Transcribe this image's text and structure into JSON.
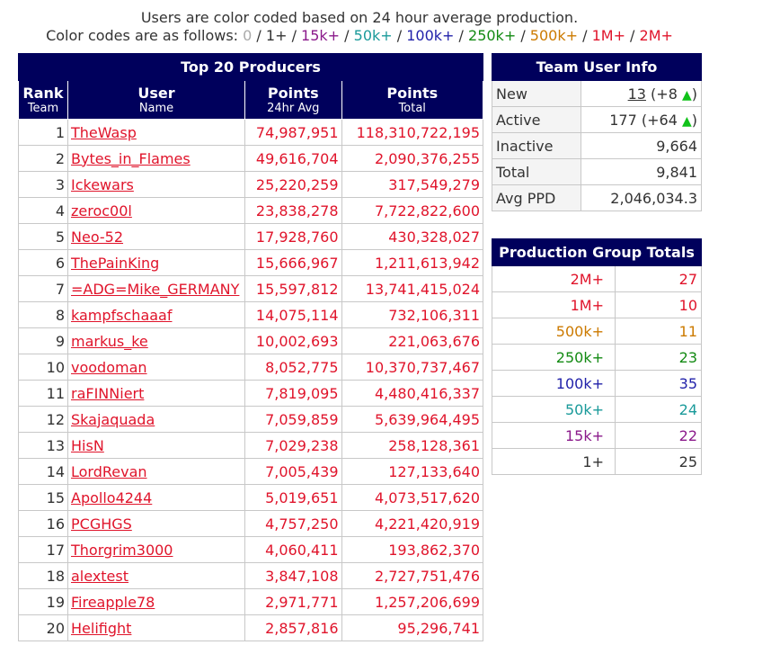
{
  "header": {
    "line1": "Users are color coded based on 24 hour average production.",
    "line2_label": "Color codes are as follows:",
    "codes": [
      {
        "label": "0",
        "color": "#aaaaaa"
      },
      {
        "label": "1+",
        "color": "#333333"
      },
      {
        "label": "15k+",
        "color": "#8b1a8b"
      },
      {
        "label": "50k+",
        "color": "#1a9a9a"
      },
      {
        "label": "100k+",
        "color": "#2222aa"
      },
      {
        "label": "250k+",
        "color": "#138a13"
      },
      {
        "label": "500k+",
        "color": "#cc7a00"
      },
      {
        "label": "1M+",
        "color": "#e0142b"
      },
      {
        "label": "2M+",
        "color": "#e0142b"
      }
    ]
  },
  "producers": {
    "title": "Top 20 Producers",
    "columns": [
      {
        "main": "Rank",
        "sub": "Team"
      },
      {
        "main": "User",
        "sub": "Name"
      },
      {
        "main": "Points",
        "sub": "24hr Avg"
      },
      {
        "main": "Points",
        "sub": "Total"
      }
    ],
    "rows": [
      {
        "rank": "1",
        "user": "TheWasp",
        "avg": "74,987,951",
        "total": "118,310,722,195"
      },
      {
        "rank": "2",
        "user": "Bytes_in_Flames",
        "avg": "49,616,704",
        "total": "2,090,376,255"
      },
      {
        "rank": "3",
        "user": "Ickewars",
        "avg": "25,220,259",
        "total": "317,549,279"
      },
      {
        "rank": "4",
        "user": "zeroc00l",
        "avg": "23,838,278",
        "total": "7,722,822,600"
      },
      {
        "rank": "5",
        "user": "Neo-52",
        "avg": "17,928,760",
        "total": "430,328,027"
      },
      {
        "rank": "6",
        "user": "ThePainKing",
        "avg": "15,666,967",
        "total": "1,211,613,942"
      },
      {
        "rank": "7",
        "user": "=ADG=Mike_GERMANY",
        "avg": "15,597,812",
        "total": "13,741,415,024"
      },
      {
        "rank": "8",
        "user": "kampfschaaaf",
        "avg": "14,075,114",
        "total": "732,106,311"
      },
      {
        "rank": "9",
        "user": "markus_ke",
        "avg": "10,002,693",
        "total": "221,063,676"
      },
      {
        "rank": "10",
        "user": "voodoman",
        "avg": "8,052,775",
        "total": "10,370,737,467"
      },
      {
        "rank": "11",
        "user": "raFINNiert",
        "avg": "7,819,095",
        "total": "4,480,416,337"
      },
      {
        "rank": "12",
        "user": "Skajaquada",
        "avg": "7,059,859",
        "total": "5,639,964,495"
      },
      {
        "rank": "13",
        "user": "HisN",
        "avg": "7,029,238",
        "total": "258,128,361"
      },
      {
        "rank": "14",
        "user": "LordRevan",
        "avg": "7,005,439",
        "total": "127,133,640"
      },
      {
        "rank": "15",
        "user": "Apollo4244",
        "avg": "5,019,651",
        "total": "4,073,517,620"
      },
      {
        "rank": "16",
        "user": "PCGHGS",
        "avg": "4,757,250",
        "total": "4,221,420,919"
      },
      {
        "rank": "17",
        "user": "Thorgrim3000",
        "avg": "4,060,411",
        "total": "193,862,370"
      },
      {
        "rank": "18",
        "user": "alextest",
        "avg": "3,847,108",
        "total": "2,727,751,476"
      },
      {
        "rank": "19",
        "user": "Fireapple78",
        "avg": "2,971,771",
        "total": "1,257,206,699"
      },
      {
        "rank": "20",
        "user": "Helifight",
        "avg": "2,857,816",
        "total": "95,296,741"
      }
    ]
  },
  "team_info": {
    "title": "Team User Info",
    "new_label": "New",
    "new_value": "13",
    "new_delta": " (+8 ",
    "active_label": "Active",
    "active_value": "177 (+64 ",
    "up_icon": "▲",
    "close_paren": ")",
    "inactive_label": "Inactive",
    "inactive_value": "9,664",
    "total_label": "Total",
    "total_value": "9,841",
    "ppd_label": "Avg PPD",
    "ppd_value": "2,046,034.3"
  },
  "groups": {
    "title": "Production Group Totals",
    "rows": [
      {
        "label": "2M+",
        "count": "27",
        "color": "#e0142b"
      },
      {
        "label": "1M+",
        "count": "10",
        "color": "#e0142b"
      },
      {
        "label": "500k+",
        "count": "11",
        "color": "#cc7a00"
      },
      {
        "label": "250k+",
        "count": "23",
        "color": "#138a13"
      },
      {
        "label": "100k+",
        "count": "35",
        "color": "#2222aa"
      },
      {
        "label": "50k+",
        "count": "24",
        "color": "#1a9a9a"
      },
      {
        "label": "15k+",
        "count": "22",
        "color": "#8b1a8b"
      },
      {
        "label": "1+",
        "count": "25",
        "color": "#333333"
      }
    ]
  }
}
